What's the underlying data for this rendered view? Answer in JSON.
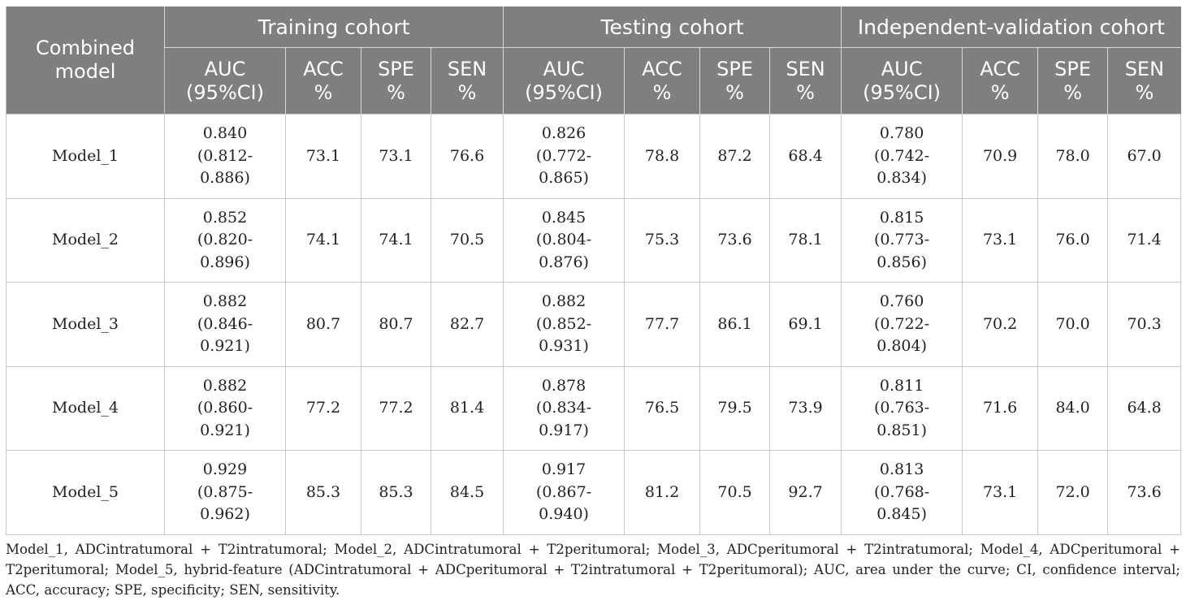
{
  "table": {
    "corner_header": [
      "Combined",
      "model"
    ],
    "cohorts": [
      "Training cohort",
      "Testing cohort",
      "Independent-validation cohort"
    ],
    "metric_headers": [
      [
        "AUC",
        "(95%CI)"
      ],
      [
        "ACC",
        "%"
      ],
      [
        "SPE",
        "%"
      ],
      [
        "SEN",
        "%"
      ]
    ],
    "rows": [
      {
        "model": "Model_1",
        "training": {
          "auc": "0.840",
          "ci_low": "(0.812-",
          "ci_high": "0.886)",
          "acc": "73.1",
          "spe": "73.1",
          "sen": "76.6"
        },
        "testing": {
          "auc": "0.826",
          "ci_low": "(0.772-",
          "ci_high": "0.865)",
          "acc": "78.8",
          "spe": "87.2",
          "sen": "68.4"
        },
        "validation": {
          "auc": "0.780",
          "ci_low": "(0.742-",
          "ci_high": "0.834)",
          "acc": "70.9",
          "spe": "78.0",
          "sen": "67.0"
        }
      },
      {
        "model": "Model_2",
        "training": {
          "auc": "0.852",
          "ci_low": "(0.820-",
          "ci_high": "0.896)",
          "acc": "74.1",
          "spe": "74.1",
          "sen": "70.5"
        },
        "testing": {
          "auc": "0.845",
          "ci_low": "(0.804-",
          "ci_high": "0.876)",
          "acc": "75.3",
          "spe": "73.6",
          "sen": "78.1"
        },
        "validation": {
          "auc": "0.815",
          "ci_low": "(0.773-",
          "ci_high": "0.856)",
          "acc": "73.1",
          "spe": "76.0",
          "sen": "71.4"
        }
      },
      {
        "model": "Model_3",
        "training": {
          "auc": "0.882",
          "ci_low": "(0.846-",
          "ci_high": "0.921)",
          "acc": "80.7",
          "spe": "80.7",
          "sen": "82.7"
        },
        "testing": {
          "auc": "0.882",
          "ci_low": "(0.852-",
          "ci_high": "0.931)",
          "acc": "77.7",
          "spe": "86.1",
          "sen": "69.1"
        },
        "validation": {
          "auc": "0.760",
          "ci_low": "(0.722-",
          "ci_high": "0.804)",
          "acc": "70.2",
          "spe": "70.0",
          "sen": "70.3"
        }
      },
      {
        "model": "Model_4",
        "training": {
          "auc": "0.882",
          "ci_low": "(0.860-",
          "ci_high": "0.921)",
          "acc": "77.2",
          "spe": "77.2",
          "sen": "81.4"
        },
        "testing": {
          "auc": "0.878",
          "ci_low": "(0.834-",
          "ci_high": "0.917)",
          "acc": "76.5",
          "spe": "79.5",
          "sen": "73.9"
        },
        "validation": {
          "auc": "0.811",
          "ci_low": "(0.763-",
          "ci_high": "0.851)",
          "acc": "71.6",
          "spe": "84.0",
          "sen": "64.8"
        }
      },
      {
        "model": "Model_5",
        "training": {
          "auc": "0.929",
          "ci_low": "(0.875-",
          "ci_high": "0.962)",
          "acc": "85.3",
          "spe": "85.3",
          "sen": "84.5"
        },
        "testing": {
          "auc": "0.917",
          "ci_low": "(0.867-",
          "ci_high": "0.940)",
          "acc": "81.2",
          "spe": "70.5",
          "sen": "92.7"
        },
        "validation": {
          "auc": "0.813",
          "ci_low": "(0.768-",
          "ci_high": "0.845)",
          "acc": "73.1",
          "spe": "72.0",
          "sen": "73.6"
        }
      }
    ]
  },
  "footnote": "Model_1, ADCintratumoral + T2intratumoral; Model_2, ADCintratumoral + T2peritumoral; Model_3, ADCperitumoral + T2intratumoral; Model_4, ADCperitumoral + T2peritumoral; Model_5, hybrid-feature (ADCintratumoral + ADCperitumoral + T2intratumoral + T2peritumoral); AUC, area under the curve; CI, confidence interval; ACC, accuracy; SPE, specificity; SEN, sensitivity.",
  "colors": {
    "header_bg": "#7f7f7f",
    "header_text": "#ffffff",
    "body_text": "#222222",
    "grid_line": "#c8c8c8"
  }
}
